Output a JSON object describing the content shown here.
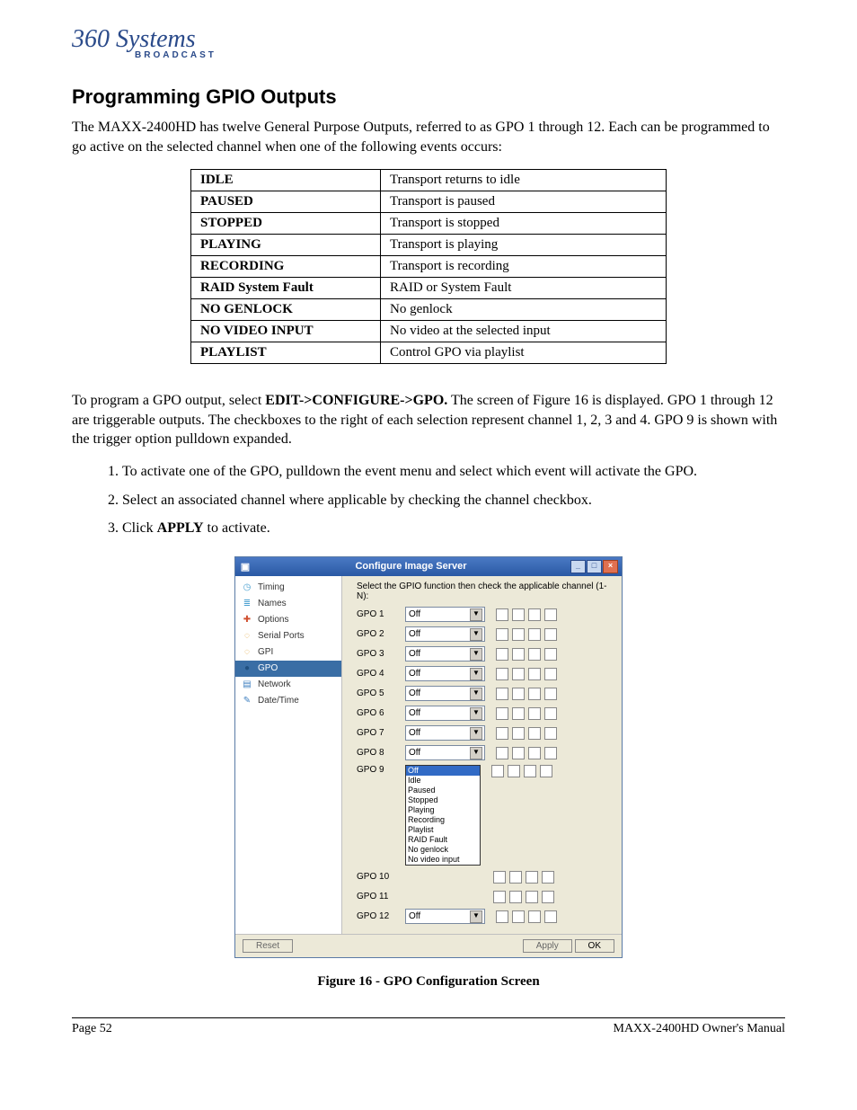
{
  "logo": {
    "top": "360 Systems",
    "sub": "BROADCAST",
    "color": "#2a4a8a"
  },
  "title": "Programming GPIO Outputs",
  "intro": "The MAXX-2400HD has twelve General Purpose Outputs, referred to as GPO 1 through 12.  Each can be programmed to go active on the selected channel when one of the following events occurs:",
  "events": [
    {
      "k": "IDLE",
      "v": "Transport returns to idle"
    },
    {
      "k": "PAUSED",
      "v": "Transport is paused"
    },
    {
      "k": "STOPPED",
      "v": "Transport is stopped"
    },
    {
      "k": "PLAYING",
      "v": "Transport is playing"
    },
    {
      "k": "RECORDING",
      "v": "Transport is recording"
    },
    {
      "k": "RAID System Fault",
      "v": "RAID or System Fault"
    },
    {
      "k": "NO GENLOCK",
      "v": "No genlock"
    },
    {
      "k": "NO VIDEO INPUT",
      "v": "No video at the selected input"
    },
    {
      "k": "PLAYLIST",
      "v": "Control GPO via playlist"
    }
  ],
  "para2_a": "To program a GPO output, select ",
  "para2_b": "EDIT->CONFIGURE->GPO.",
  "para2_c": "  The screen of Figure 16 is displayed. GPO 1 through 12 are triggerable outputs. The checkboxes to the right of each selection represent channel 1, 2, 3 and 4. GPO 9 is shown with the trigger option pulldown expanded.",
  "steps": [
    "To activate one of the GPO, pulldown the event menu and select which event will activate the GPO.",
    "Select an associated channel where applicable by checking the channel checkbox.",
    {
      "pre": "Click ",
      "b": "APPLY",
      "post": " to activate."
    }
  ],
  "shot": {
    "title": "Configure Image Server",
    "instr": "Select the GPIO function then check the applicable channel (1-N):",
    "sidebar": [
      {
        "label": "Timing",
        "icon": "◷",
        "color": "#4aa0d0"
      },
      {
        "label": "Names",
        "icon": "≣",
        "color": "#4aa0d0"
      },
      {
        "label": "Options",
        "icon": "✚",
        "color": "#d05030"
      },
      {
        "label": "Serial Ports",
        "icon": "◌",
        "color": "#e0a030"
      },
      {
        "label": "GPI",
        "icon": "◌",
        "color": "#e0a030"
      },
      {
        "label": "GPO",
        "icon": "●",
        "color": "#205080",
        "selected": true
      },
      {
        "label": "Network",
        "icon": "▤",
        "color": "#4080c0"
      },
      {
        "label": "Date/Time",
        "icon": "✎",
        "color": "#4080c0"
      }
    ],
    "rows": [
      {
        "label": "GPO 1",
        "value": "Off"
      },
      {
        "label": "GPO 2",
        "value": "Off"
      },
      {
        "label": "GPO 3",
        "value": "Off"
      },
      {
        "label": "GPO 4",
        "value": "Off"
      },
      {
        "label": "GPO 5",
        "value": "Off"
      },
      {
        "label": "GPO 6",
        "value": "Off"
      },
      {
        "label": "GPO 7",
        "value": "Off"
      },
      {
        "label": "GPO 8",
        "value": "Off"
      }
    ],
    "expanded": {
      "label": "GPO 9",
      "options": [
        "Off",
        "Idle",
        "Paused",
        "Stopped",
        "Playing",
        "Recording",
        "Playlist",
        "RAID Fault",
        "No genlock",
        "No video input"
      ]
    },
    "after": [
      {
        "label": "GPO 10"
      },
      {
        "label": "GPO 11"
      },
      {
        "label": "GPO 12",
        "value": "Off"
      }
    ],
    "buttons": {
      "reset": "Reset",
      "apply": "Apply",
      "ok": "OK"
    }
  },
  "figcap": "Figure 16 - GPO Configuration Screen",
  "footer": {
    "left": "Page 52",
    "right": "MAXX-2400HD Owner's Manual"
  }
}
